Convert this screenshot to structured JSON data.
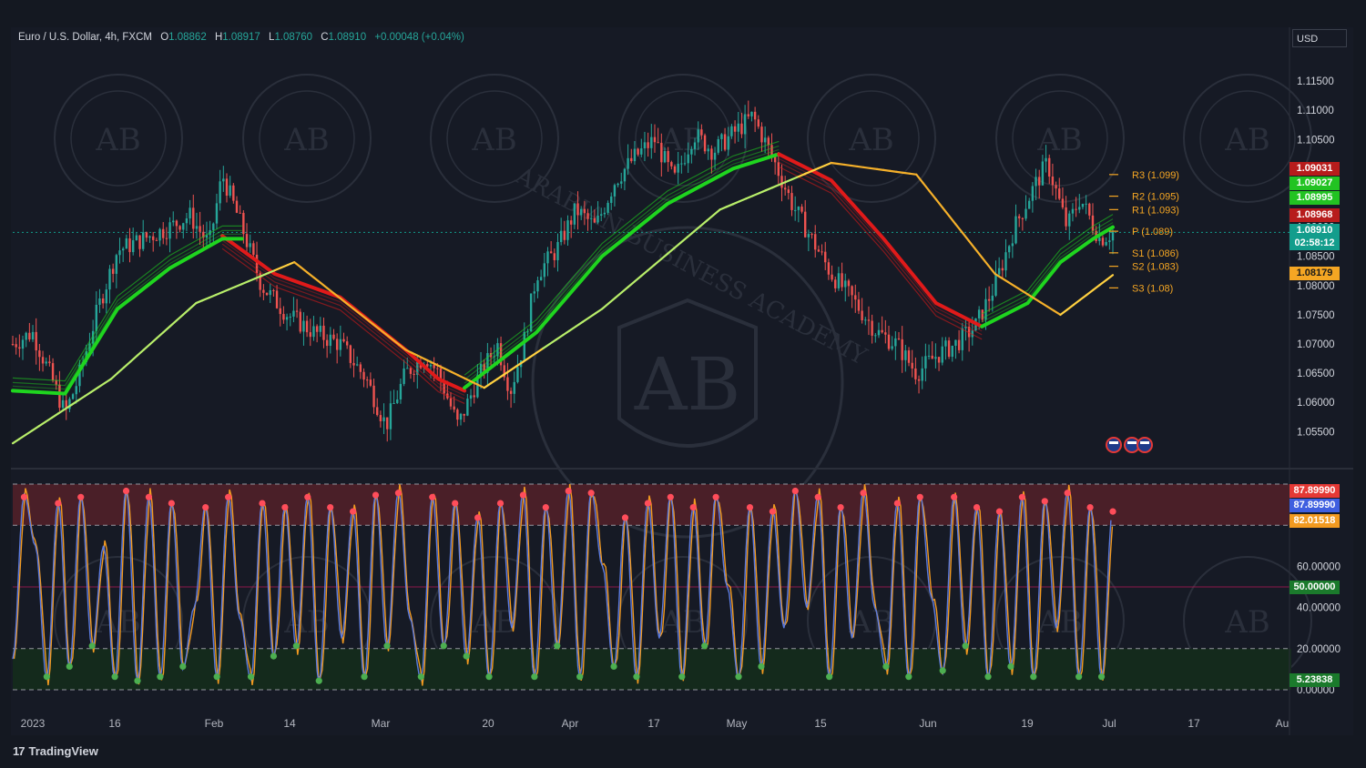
{
  "header": {
    "symbol": "Euro / U.S. Dollar, 4h, FXCM",
    "o_label": "O",
    "o": "1.08862",
    "h_label": "H",
    "h": "1.08917",
    "l_label": "L",
    "l": "1.08760",
    "c_label": "C",
    "c": "1.08910",
    "change": "+0.00048 (+0.04%)"
  },
  "currency": "USD",
  "brand": "TradingView",
  "watermark": {
    "initials": "AB",
    "text": "ARABIAN BUSINESS ACADEMY"
  },
  "colors": {
    "bull_ma": "#1fd51f",
    "bear_ma": "#e01a1a",
    "long_ma_up": "#ffd040",
    "stoch_k": "#5b7be0",
    "stoch_d": "#f29a20",
    "overbought_fill": "#4a1f28",
    "oversold_fill": "#142a1c",
    "candle_up": "#26a69a",
    "candle_down": "#ef5350"
  },
  "price_tags": [
    {
      "value": "1.09031",
      "color": "#b71c1c"
    },
    {
      "value": "1.09027",
      "color": "#22c322"
    },
    {
      "value": "1.08995",
      "color": "#22c322"
    },
    {
      "value": "1.08968",
      "color": "#b71c1c"
    },
    {
      "value": "1.08910",
      "color": "#139d8c"
    },
    {
      "value": "02:58:12",
      "color": "#139d8c"
    },
    {
      "value": "1.08179",
      "color": "#f5a623"
    }
  ],
  "osc_tags": [
    {
      "value": "87.89990",
      "color": "#e53935"
    },
    {
      "value": "87.89990",
      "color": "#3f5fe0"
    },
    {
      "value": "82.01518",
      "color": "#f29a20"
    },
    {
      "value": "50.00000",
      "color": "#1b7a2c"
    },
    {
      "value": "5.23838",
      "color": "#1b7a2c"
    }
  ],
  "chart_data": [
    {
      "type": "line",
      "title": "Euro / U.S. Dollar, 4h, FXCM",
      "ylim": [
        1.051,
        1.12
      ],
      "y_ticks": [
        "1.11500",
        "1.11000",
        "1.10500",
        "1.10000",
        "1.09500",
        "1.09000",
        "1.08500",
        "1.08000",
        "1.07500",
        "1.07000",
        "1.06500",
        "1.06000",
        "1.05500"
      ],
      "x_ticks": [
        "2023",
        "16",
        "Feb",
        "14",
        "Mar",
        "20",
        "Apr",
        "17",
        "May",
        "15",
        "Jun",
        "19",
        "Jul",
        "17",
        "Au"
      ],
      "pivots": [
        {
          "label": "R3 (1.099)",
          "value": 1.099,
          "color": "#f5a623"
        },
        {
          "label": "R2 (1.095)",
          "value": 1.0953,
          "color": "#f5a623"
        },
        {
          "label": "R1 (1.093)",
          "value": 1.093,
          "color": "#f5a623"
        },
        {
          "label": "P (1.089)",
          "value": 1.0893,
          "color": "#f5a623"
        },
        {
          "label": "S1 (1.086)",
          "value": 1.0856,
          "color": "#f5a623"
        },
        {
          "label": "S2 (1.083)",
          "value": 1.0833,
          "color": "#f5a623"
        },
        {
          "label": "S3 (1.08)",
          "value": 1.0796,
          "color": "#f5a623"
        }
      ],
      "price_path": [
        [
          0,
          1.07
        ],
        [
          3,
          1.072
        ],
        [
          6,
          1.064
        ],
        [
          8,
          1.058
        ],
        [
          10,
          1.064
        ],
        [
          13,
          1.076
        ],
        [
          16,
          1.086
        ],
        [
          20,
          1.088
        ],
        [
          24,
          1.09
        ],
        [
          27,
          1.092
        ],
        [
          30,
          1.087
        ],
        [
          32,
          1.099
        ],
        [
          35,
          1.09
        ],
        [
          38,
          1.08
        ],
        [
          42,
          1.075
        ],
        [
          46,
          1.072
        ],
        [
          50,
          1.07
        ],
        [
          54,
          1.064
        ],
        [
          57,
          1.056
        ],
        [
          60,
          1.065
        ],
        [
          63,
          1.068
        ],
        [
          65,
          1.065
        ],
        [
          68,
          1.056
        ],
        [
          71,
          1.064
        ],
        [
          74,
          1.07
        ],
        [
          76,
          1.062
        ],
        [
          78,
          1.07
        ],
        [
          80,
          1.082
        ],
        [
          83,
          1.086
        ],
        [
          86,
          1.093
        ],
        [
          89,
          1.09
        ],
        [
          92,
          1.098
        ],
        [
          95,
          1.102
        ],
        [
          98,
          1.105
        ],
        [
          101,
          1.098
        ],
        [
          104,
          1.106
        ],
        [
          107,
          1.103
        ],
        [
          110,
          1.106
        ],
        [
          113,
          1.109
        ],
        [
          116,
          1.102
        ],
        [
          119,
          1.094
        ],
        [
          122,
          1.088
        ],
        [
          125,
          1.082
        ],
        [
          128,
          1.078
        ],
        [
          132,
          1.072
        ],
        [
          135,
          1.07
        ],
        [
          138,
          1.065
        ],
        [
          141,
          1.068
        ],
        [
          144,
          1.07
        ],
        [
          147,
          1.073
        ],
        [
          150,
          1.08
        ],
        [
          153,
          1.09
        ],
        [
          156,
          1.097
        ],
        [
          158,
          1.101
        ],
        [
          161,
          1.09
        ],
        [
          163,
          1.095
        ],
        [
          166,
          1.088
        ],
        [
          168,
          1.0891
        ]
      ],
      "series": [
        {
          "name": "",
          "color": "#e01a1a",
          "values": [
            [
              32,
              1.0885
            ],
            [
              40,
              1.082
            ],
            [
              50,
              1.078
            ],
            [
              60,
              1.069
            ],
            [
              65,
              1.064
            ],
            [
              69,
              1.062
            ]
          ]
        },
        {
          "name": "",
          "color": "#1fd51f",
          "values": [
            [
              0,
              1.062
            ],
            [
              8,
              1.0615
            ],
            [
              16,
              1.076
            ],
            [
              24,
              1.083
            ],
            [
              32,
              1.088
            ],
            [
              35,
              1.088
            ]
          ]
        },
        {
          "name": "",
          "color": "#1fd51f",
          "values": [
            [
              69,
              1.0625
            ],
            [
              80,
              1.072
            ],
            [
              90,
              1.085
            ],
            [
              100,
              1.094
            ],
            [
              110,
              1.1
            ],
            [
              117,
              1.1025
            ]
          ]
        },
        {
          "name": "",
          "color": "#e01a1a",
          "values": [
            [
              117,
              1.1025
            ],
            [
              125,
              1.098
            ],
            [
              133,
              1.088
            ],
            [
              141,
              1.077
            ],
            [
              148,
              1.073
            ]
          ]
        },
        {
          "name": "",
          "color": "#1fd51f",
          "values": [
            [
              148,
              1.073
            ],
            [
              155,
              1.077
            ],
            [
              160,
              1.084
            ],
            [
              165,
              1.088
            ],
            [
              168,
              1.09
            ]
          ]
        },
        {
          "name": "",
          "color": "#ffd040",
          "values": [
            [
              0,
              1.053
            ],
            [
              15,
              1.064
            ],
            [
              28,
              1.077
            ],
            [
              43,
              1.084
            ],
            [
              60,
              1.069
            ],
            [
              72,
              1.0625
            ],
            [
              90,
              1.076
            ],
            [
              108,
              1.093
            ],
            [
              125,
              1.101
            ],
            [
              138,
              1.099
            ],
            [
              150,
              1.082
            ],
            [
              160,
              1.075
            ],
            [
              168,
              1.0818
            ]
          ]
        }
      ]
    },
    {
      "type": "line",
      "title": "",
      "ylim": [
        0,
        100
      ],
      "y_ticks": [
        "60.00000",
        "40.00000",
        "20.00000",
        "0.00000"
      ],
      "bands": {
        "overbought": 80,
        "middle": 50,
        "oversold": 20
      },
      "series": [
        {
          "name": "",
          "color": "#5b7be0",
          "last": 87.8999
        },
        {
          "name": "",
          "color": "#f29a20",
          "last": 82.01518
        }
      ],
      "cycle_peaks_troughs": [
        15,
        95,
        70,
        5,
        92,
        10,
        95,
        20,
        70,
        5,
        98,
        3,
        95,
        5,
        92,
        10,
        40,
        90,
        5,
        95,
        35,
        5,
        92,
        15,
        90,
        20,
        95,
        3,
        90,
        25,
        88,
        5,
        96,
        20,
        97,
        35,
        5,
        95,
        20,
        92,
        15,
        85,
        5,
        92,
        30,
        96,
        5,
        90,
        20,
        98,
        5,
        97,
        60,
        10,
        85,
        5,
        92,
        25,
        95,
        5,
        90,
        20,
        95,
        50,
        5,
        90,
        10,
        88,
        30,
        98,
        40,
        95,
        5,
        90,
        25,
        97,
        40,
        10,
        92,
        5,
        95,
        45,
        8,
        95,
        20,
        90,
        5,
        88,
        10,
        95,
        5,
        93,
        30,
        97,
        5,
        90,
        5,
        88
      ]
    }
  ]
}
